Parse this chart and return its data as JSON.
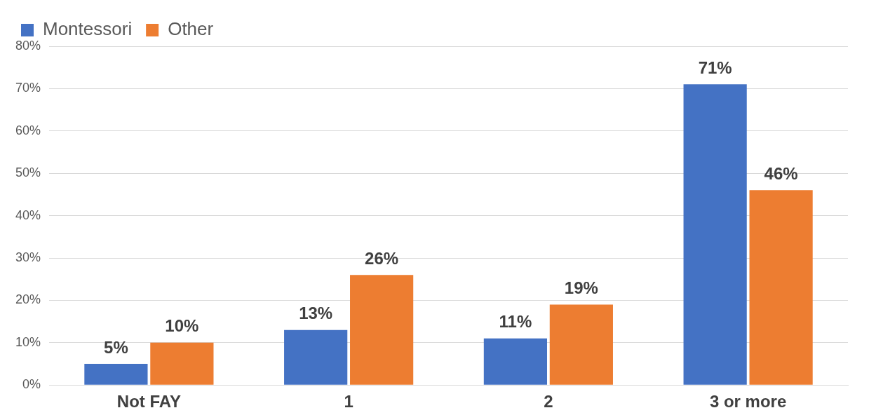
{
  "chart_data": {
    "type": "bar",
    "categories": [
      "Not FAY",
      "1",
      "2",
      "3 or more"
    ],
    "series": [
      {
        "name": "Montessori",
        "color": "#4472c4",
        "values": [
          5,
          13,
          11,
          71
        ],
        "value_labels": [
          "5%",
          "13%",
          "11%",
          "71%"
        ]
      },
      {
        "name": "Other",
        "color": "#ed7d31",
        "values": [
          10,
          26,
          19,
          46
        ],
        "value_labels": [
          "10%",
          "26%",
          "19%",
          "46%"
        ]
      }
    ],
    "ylim": [
      0,
      80
    ],
    "yticks": [
      {
        "value": 0,
        "label": "0%"
      },
      {
        "value": 10,
        "label": "10%"
      },
      {
        "value": 20,
        "label": "20%"
      },
      {
        "value": 30,
        "label": "30%"
      },
      {
        "value": 40,
        "label": "40%"
      },
      {
        "value": 50,
        "label": "50%"
      },
      {
        "value": 60,
        "label": "60%"
      },
      {
        "value": 70,
        "label": "70%"
      },
      {
        "value": 80,
        "label": "80%"
      }
    ],
    "grid": "y",
    "legend": "top left"
  }
}
